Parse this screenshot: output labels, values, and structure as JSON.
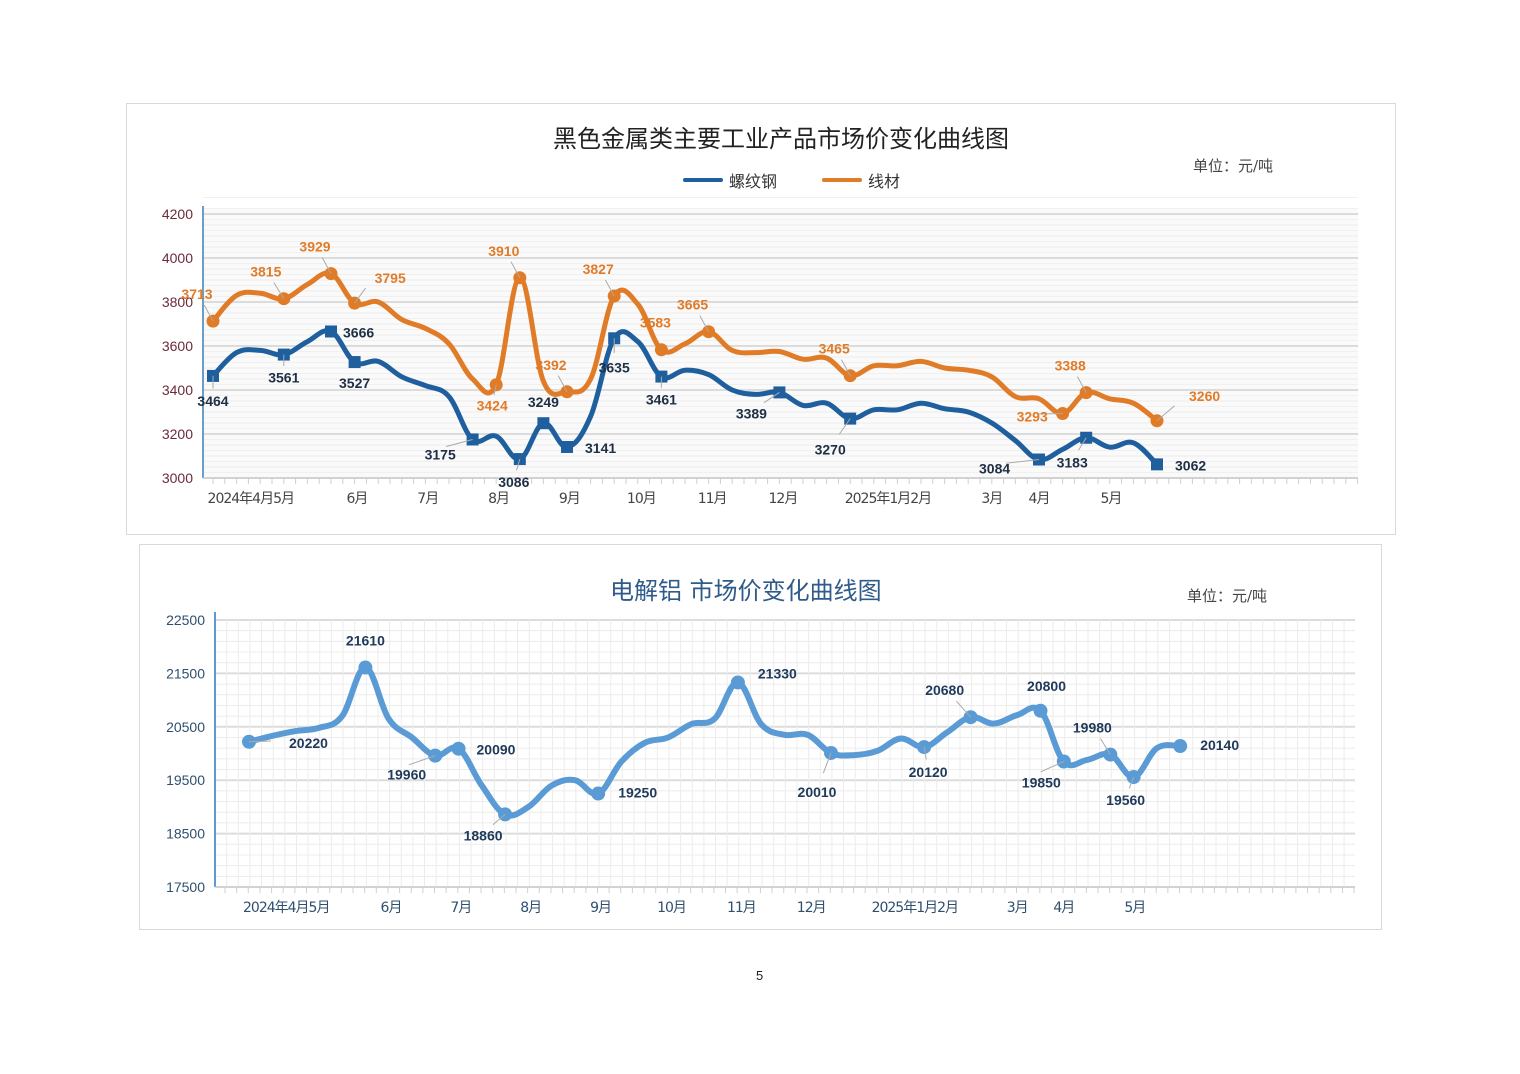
{
  "page_number": "5",
  "chart_data": [
    {
      "type": "line",
      "title": "黑色金属类主要工业产品市场价变化曲线图",
      "unit": "单位：元/吨",
      "ylim": [
        3000,
        4200
      ],
      "yticks": [
        "3000",
        "3200",
        "3400",
        "3600",
        "3800",
        "4000",
        "4200"
      ],
      "xticks": [
        "2024年4月5月",
        "6月",
        "7月",
        "8月",
        "9月",
        "10月",
        "11月",
        "12月",
        "2025年1月2月",
        "3月",
        "4月",
        "5月"
      ],
      "grid": true,
      "legend": "top-center",
      "series": [
        {
          "name": "螺纹钢",
          "color": "#1f5f9e",
          "marker": "square",
          "values": [
            3464,
            3570,
            3580,
            3561,
            3620,
            3666,
            3527,
            3530,
            3460,
            3420,
            3370,
            3175,
            3190,
            3086,
            3249,
            3141,
            3280,
            3635,
            3620,
            3461,
            3490,
            3470,
            3400,
            3380,
            3389,
            3330,
            3340,
            3270,
            3310,
            3310,
            3340,
            3315,
            3300,
            3250,
            3170,
            3084,
            3130,
            3183,
            3140,
            3160,
            3062
          ],
          "labels": {
            "0": "3464",
            "3": "3561",
            "5": "3666",
            "6": "3527",
            "11": "3175",
            "13": "3086",
            "14": "3249",
            "15": "3141",
            "17": "3635",
            "19": "3461",
            "24": "3389",
            "27": "3270",
            "35": "3084",
            "37": "3183",
            "40": "3062"
          }
        },
        {
          "name": "线材",
          "color": "#e07b28",
          "marker": "circle",
          "values": [
            3713,
            3830,
            3840,
            3815,
            3880,
            3929,
            3795,
            3800,
            3720,
            3680,
            3610,
            3450,
            3424,
            3910,
            3440,
            3392,
            3450,
            3827,
            3790,
            3583,
            3610,
            3665,
            3580,
            3570,
            3575,
            3540,
            3545,
            3465,
            3510,
            3510,
            3530,
            3500,
            3490,
            3460,
            3370,
            3360,
            3293,
            3388,
            3360,
            3340,
            3260
          ],
          "labels": {
            "0": "3713",
            "3": "3815",
            "5": "3929",
            "6": "3795",
            "12": "3424",
            "13": "3910",
            "15": "3392",
            "17": "3827",
            "19": "3583",
            "21": "3665",
            "27": "3465",
            "36": "3293",
            "37": "3388",
            "40": "3260"
          }
        }
      ]
    },
    {
      "type": "line",
      "title": "电解铝 市场价变化曲线图",
      "unit": "单位：元/吨",
      "ylim": [
        17500,
        22500
      ],
      "yticks": [
        "17500",
        "18500",
        "19500",
        "20500",
        "21500",
        "22500"
      ],
      "xticks": [
        "2024年4月5月",
        "6月",
        "7月",
        "8月",
        "9月",
        "10月",
        "11月",
        "12月",
        "2025年1月2月",
        "3月",
        "4月",
        "5月"
      ],
      "grid": true,
      "series": [
        {
          "color": "#5b9bd5",
          "marker": "circle",
          "values": [
            20220,
            20330,
            20420,
            20480,
            20700,
            21610,
            20650,
            20300,
            19960,
            20090,
            19400,
            18860,
            19000,
            19400,
            19500,
            19250,
            19850,
            20200,
            20300,
            20550,
            20650,
            21330,
            20550,
            20350,
            20350,
            20010,
            19970,
            20050,
            20280,
            20120,
            20400,
            20680,
            20560,
            20720,
            20800,
            19850,
            19880,
            19980,
            19560,
            20100,
            20140
          ],
          "labels": {
            "0": "20220",
            "5": "21610",
            "8": "19960",
            "9": "20090",
            "11": "18860",
            "15": "19250",
            "21": "21330",
            "25": "20010",
            "29": "20120",
            "31": "20680",
            "34": "20800",
            "35": "19850",
            "37": "19980",
            "38": "19560",
            "40": "20140"
          }
        }
      ]
    }
  ]
}
